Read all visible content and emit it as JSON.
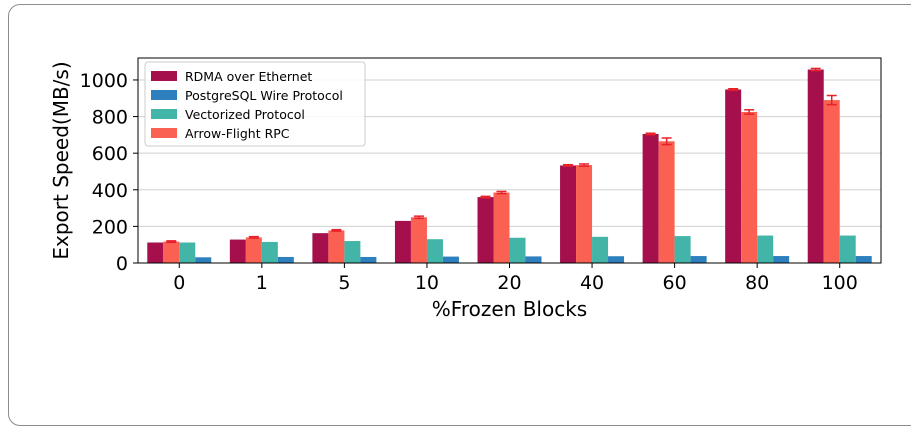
{
  "chart_data": {
    "type": "bar",
    "xlabel": "%Frozen Blocks",
    "ylabel": "Export Speed(MB/s)",
    "ylim": [
      0,
      1120
    ],
    "yticks": [
      0,
      200,
      400,
      600,
      800,
      1000
    ],
    "categories": [
      "0",
      "1",
      "5",
      "10",
      "20",
      "40",
      "60",
      "80",
      "100"
    ],
    "grid": "horizontal",
    "legend_position": "top-left",
    "series": [
      {
        "name": "RDMA over Ethernet",
        "color": "#a50f4b",
        "values": [
          112,
          128,
          163,
          230,
          360,
          533,
          705,
          948,
          1057
        ],
        "errors": [
          0,
          0,
          0,
          0,
          4,
          4,
          4,
          4,
          6
        ]
      },
      {
        "name": "Arrow-Flight RPC",
        "color": "#fa6152",
        "values": [
          117,
          140,
          178,
          250,
          385,
          535,
          665,
          825,
          890
        ],
        "errors": [
          4,
          4,
          4,
          6,
          6,
          6,
          18,
          12,
          25
        ]
      },
      {
        "name": "Vectorized Protocol",
        "color": "#43b5a8",
        "values": [
          112,
          115,
          120,
          130,
          138,
          143,
          147,
          150,
          150
        ],
        "errors": [
          0,
          0,
          0,
          0,
          0,
          0,
          0,
          0,
          0
        ]
      },
      {
        "name": "PostgreSQL Wire Protocol",
        "color": "#2d7fbd",
        "values": [
          31,
          33,
          33,
          35,
          36,
          37,
          38,
          38,
          38
        ],
        "errors": [
          0,
          0,
          0,
          0,
          0,
          0,
          0,
          0,
          0
        ]
      }
    ],
    "legend_order": [
      "RDMA over Ethernet",
      "PostgreSQL Wire Protocol",
      "Vectorized Protocol",
      "Arrow-Flight RPC"
    ],
    "error_bar_color": "#e8202a"
  }
}
